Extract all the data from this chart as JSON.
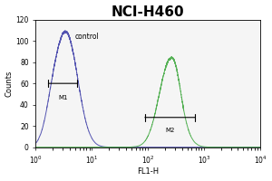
{
  "title": "NCI-H460",
  "xlabel": "FL1-H",
  "ylabel": "Counts",
  "xlim_log": [
    0,
    4
  ],
  "ylim": [
    0,
    120
  ],
  "yticks": [
    0,
    20,
    40,
    60,
    80,
    100,
    120
  ],
  "control_color": "#4444aa",
  "sample_color": "#44aa44",
  "control_label": "control",
  "m1_label": "M1",
  "m2_label": "M2",
  "control_peak_log": 0.55,
  "sample_peak_log": 2.38,
  "bg_color": "#ffffff",
  "plot_bg_color": "#f5f5f5",
  "title_fontsize": 11,
  "axis_fontsize": 6,
  "tick_fontsize": 5.5,
  "m1_x1_log": 0.18,
  "m1_x2_log": 0.78,
  "m1_y": 60,
  "m2_x1_log": 1.9,
  "m2_x2_log": 2.88,
  "m2_y": 28
}
